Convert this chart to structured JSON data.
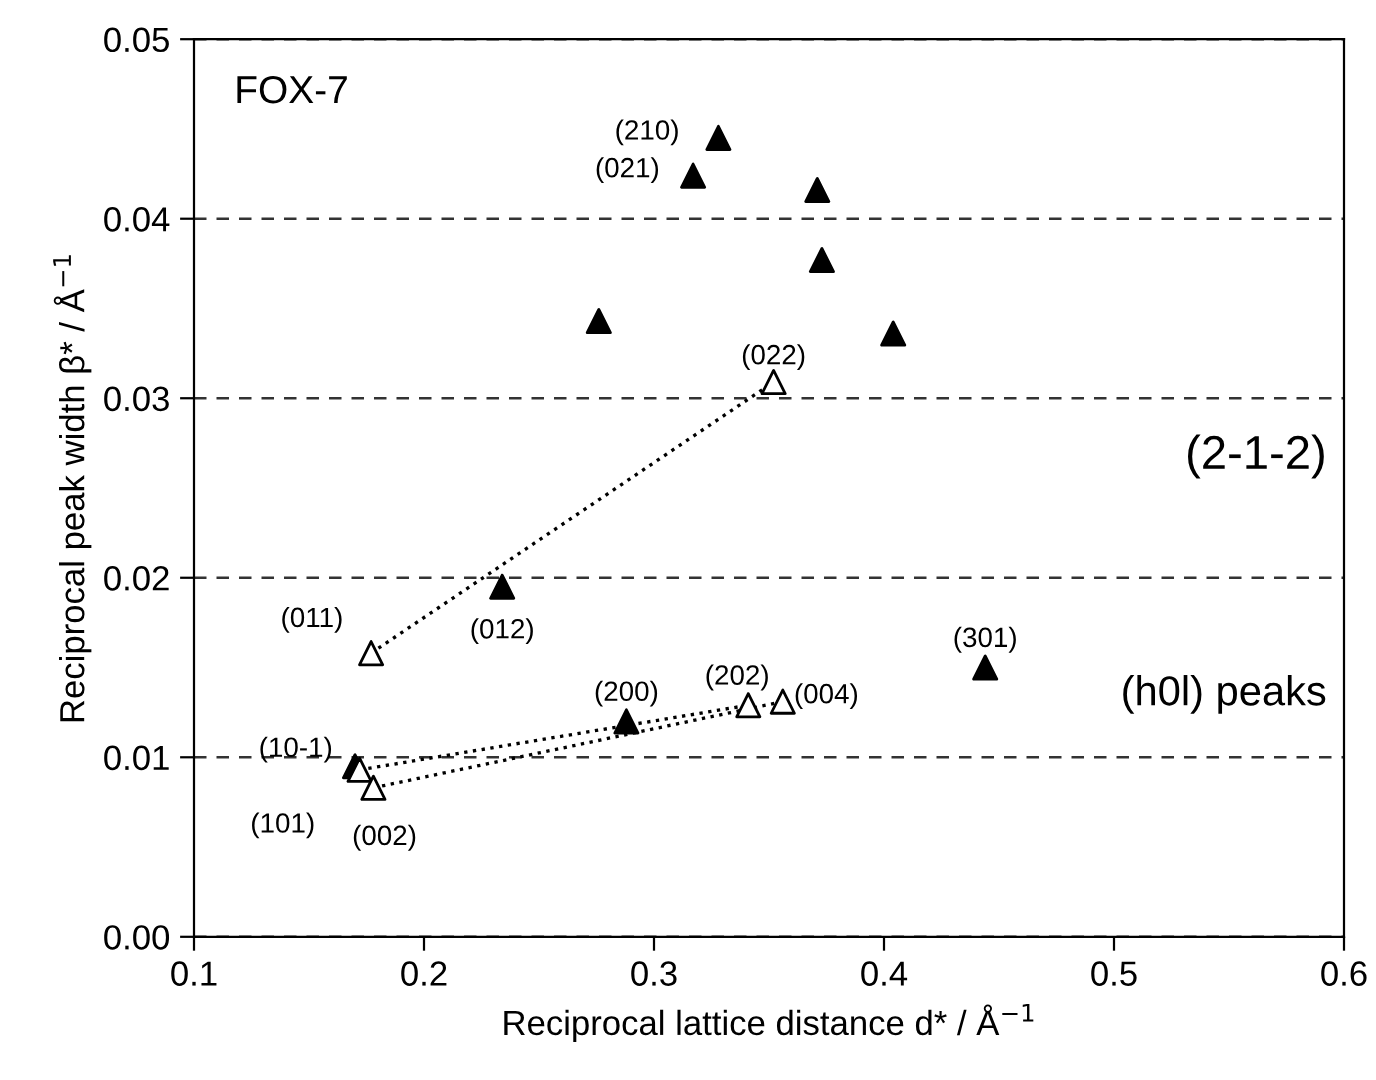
{
  "chart_data": {
    "type": "scatter",
    "xlabel": "Reciprocal lattice distance d* / Å$^{−1}$",
    "ylabel": "Reciprocal peak width β* / Å$^{−1}$",
    "xlim": [
      0.1,
      0.6
    ],
    "xticks": [
      0.1,
      0.2,
      0.3,
      0.4,
      0.5,
      0.6
    ],
    "ylim": [
      0,
      0.05
    ],
    "yticks": [
      {
        "value": 0,
        "label": "0.00"
      },
      0.01,
      0.02,
      0.03,
      0.04,
      0.05
    ],
    "grid": "y",
    "marker": "triangle",
    "series": [
      {
        "type": "scatter",
        "color": "#000000",
        "x": [
          0.328,
          0.317,
          0.371,
          0.373,
          0.276,
          0.404,
          0.234,
          0.288,
          0.17,
          0.444
        ],
        "values": [
          0.0445,
          0.0424,
          0.0416,
          0.0377,
          0.0343,
          0.0336,
          0.0195,
          0.012,
          0.0095,
          0.015
        ]
      },
      {
        "type": "scatter",
        "color": "#ffffff",
        "x": [
          0.352,
          0.177,
          0.341,
          0.356,
          0.172,
          0.178
        ],
        "values": [
          0.0309,
          0.0158,
          0.0129,
          0.0131,
          0.0093,
          0.0083
        ]
      },
      {
        "type": "line",
        "color": "#000000",
        "marker": "none",
        "line_style": "dotted",
        "x": [
          0.177,
          0.352
        ],
        "values": [
          0.0158,
          0.0309
        ]
      },
      {
        "type": "line",
        "color": "#000000",
        "marker": "none",
        "line_style": "dotted",
        "x": [
          0.172,
          0.341
        ],
        "values": [
          0.0093,
          0.0129
        ]
      },
      {
        "type": "line",
        "color": "#000000",
        "marker": "none",
        "line_style": "dotted",
        "x": [
          0.178,
          0.356
        ],
        "values": [
          0.0083,
          0.0131
        ]
      }
    ],
    "annotations": [
      {
        "text": "(210)",
        "x": 0.328,
        "y": 0.0445
      },
      {
        "text": "(021)",
        "x": 0.317,
        "y": 0.0424
      },
      {
        "text": "(022)",
        "x": 0.352,
        "y": 0.0309
      },
      {
        "text": "(011)",
        "x": 0.177,
        "y": 0.0158
      },
      {
        "text": "(012)",
        "x": 0.234,
        "y": 0.0195
      },
      {
        "text": "(200)",
        "x": 0.288,
        "y": 0.012
      },
      {
        "text": "(202)",
        "x": 0.341,
        "y": 0.0129
      },
      {
        "text": "(004)",
        "x": 0.356,
        "y": 0.0131
      },
      {
        "text": "(10-1)",
        "x": 0.17,
        "y": 0.0095
      },
      {
        "text": "(101)",
        "x": 0.172,
        "y": 0.0093
      },
      {
        "text": "(002)",
        "x": 0.178,
        "y": 0.0083
      },
      {
        "text": "(301)",
        "x": 0.444,
        "y": 0.015
      },
      "FOX-7",
      "(2-1-2)",
      "(h0l) peaks"
    ]
  }
}
